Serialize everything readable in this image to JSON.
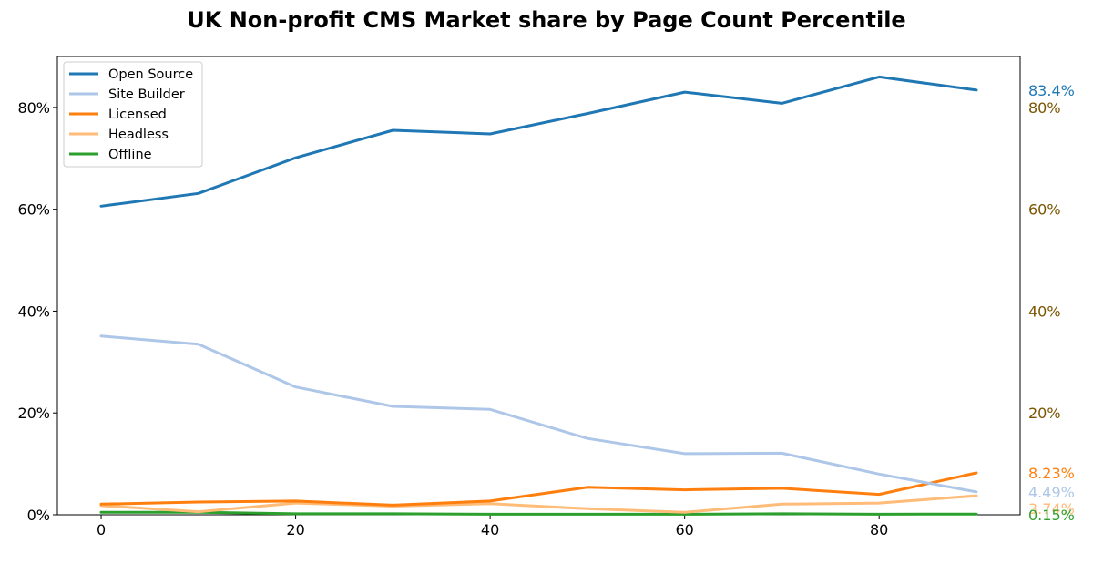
{
  "chart_data": {
    "type": "line",
    "title": "UK Non-profit CMS Market share by Page Count Percentile",
    "xlabel": "",
    "ylabel": "",
    "x": [
      0,
      10,
      20,
      30,
      40,
      50,
      60,
      70,
      80,
      90
    ],
    "xlim": [
      -4.5,
      94.5
    ],
    "ylim": [
      0,
      90
    ],
    "x_ticks": [
      "0",
      "20",
      "40",
      "60",
      "80"
    ],
    "x_tick_values": [
      0,
      20,
      40,
      60,
      80
    ],
    "y_ticks": [
      "0%",
      "20%",
      "40%",
      "60%",
      "80%"
    ],
    "y_tick_values": [
      0,
      20,
      40,
      60,
      80
    ],
    "right_axis_ticks": [
      "20%",
      "40%",
      "60%",
      "80%"
    ],
    "right_axis_tick_values": [
      20,
      40,
      60,
      80
    ],
    "right_axis_color": "#7a5500",
    "legend_position": "upper-left",
    "grid": false,
    "series": [
      {
        "name": "Open Source",
        "color": "#1f77b4",
        "end_label": "83.4%",
        "values": [
          60.6,
          63.1,
          70.1,
          75.5,
          74.8,
          78.8,
          83.0,
          80.8,
          86.0,
          83.4
        ]
      },
      {
        "name": "Site Builder",
        "color": "#aec7e8",
        "end_label": "4.49%",
        "values": [
          35.1,
          33.5,
          25.1,
          21.3,
          20.7,
          15.0,
          12.0,
          12.1,
          8.0,
          4.49
        ]
      },
      {
        "name": "Licensed",
        "color": "#ff7f0e",
        "end_label": "8.23%",
        "values": [
          2.1,
          2.5,
          2.7,
          1.9,
          2.7,
          5.4,
          4.9,
          5.2,
          4.0,
          8.23
        ]
      },
      {
        "name": "Headless",
        "color": "#ffbb78",
        "end_label": "3.74%",
        "values": [
          1.8,
          0.6,
          2.3,
          1.7,
          2.2,
          1.2,
          0.5,
          2.1,
          2.3,
          3.74
        ]
      },
      {
        "name": "Offline",
        "color": "#2ca02c",
        "end_label": "0.15%",
        "values": [
          0.5,
          0.5,
          0.2,
          0.2,
          0.1,
          0.1,
          0.1,
          0.2,
          0.1,
          0.15
        ]
      }
    ]
  }
}
